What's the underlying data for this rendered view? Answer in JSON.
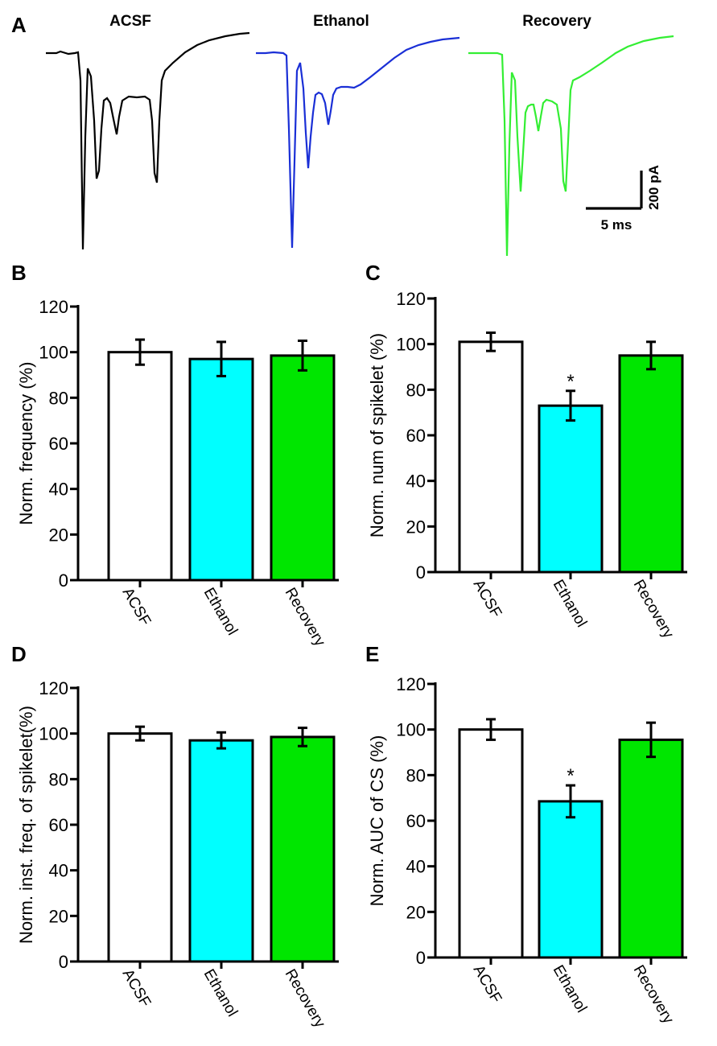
{
  "panel_a": {
    "label": "A",
    "traces": [
      {
        "title": "ACSF",
        "color": "#000000"
      },
      {
        "title": "Ethanol",
        "color": "#1a2fd6"
      },
      {
        "title": "Recovery",
        "color": "#33ee33"
      }
    ],
    "scale_bar": {
      "current_label": "200 pA",
      "time_label": "5 ms"
    }
  },
  "colors": {
    "ACSF": "#ffffff",
    "Ethanol": "#00ffff",
    "Recovery": "#00e600",
    "outline": "#000000"
  },
  "chart_data": [
    {
      "panel": "B",
      "type": "bar",
      "categories": [
        "ACSF",
        "Ethanol",
        "Recovery"
      ],
      "values": [
        100,
        97,
        98.5
      ],
      "errors": [
        5.5,
        7.5,
        6.5
      ],
      "significance": [
        "",
        "",
        ""
      ],
      "ylabel": "Norm. frequency (%)",
      "ylim": [
        0,
        120
      ],
      "yticks": [
        0,
        20,
        40,
        60,
        80,
        100,
        120
      ],
      "legend": "none"
    },
    {
      "panel": "C",
      "type": "bar",
      "categories": [
        "ACSF",
        "Ethanol",
        "Recovery"
      ],
      "values": [
        101,
        73,
        95
      ],
      "errors": [
        4,
        6.5,
        6
      ],
      "significance": [
        "",
        "*",
        ""
      ],
      "ylabel": "Norm. num of spikelet (%)",
      "ylim": [
        0,
        120
      ],
      "yticks": [
        0,
        20,
        40,
        60,
        80,
        100,
        120
      ],
      "legend": "none"
    },
    {
      "panel": "D",
      "type": "bar",
      "categories": [
        "ACSF",
        "Ethanol",
        "Recovery"
      ],
      "values": [
        100,
        97,
        98.5
      ],
      "errors": [
        3,
        3.5,
        4
      ],
      "significance": [
        "",
        "",
        ""
      ],
      "ylabel": "Norm. inst. freq. of  spikelet(%)",
      "ylim": [
        0,
        120
      ],
      "yticks": [
        0,
        20,
        40,
        60,
        80,
        100,
        120
      ],
      "legend": "none"
    },
    {
      "panel": "E",
      "type": "bar",
      "categories": [
        "ACSF",
        "Ethanol",
        "Recovery"
      ],
      "values": [
        100,
        68.5,
        95.5
      ],
      "errors": [
        4.5,
        7,
        7.5
      ],
      "significance": [
        "",
        "*",
        ""
      ],
      "ylabel": "Norm. AUC of  CS (%)",
      "ylim": [
        0,
        120
      ],
      "yticks": [
        0,
        20,
        40,
        60,
        80,
        100,
        120
      ],
      "legend": "none"
    }
  ]
}
